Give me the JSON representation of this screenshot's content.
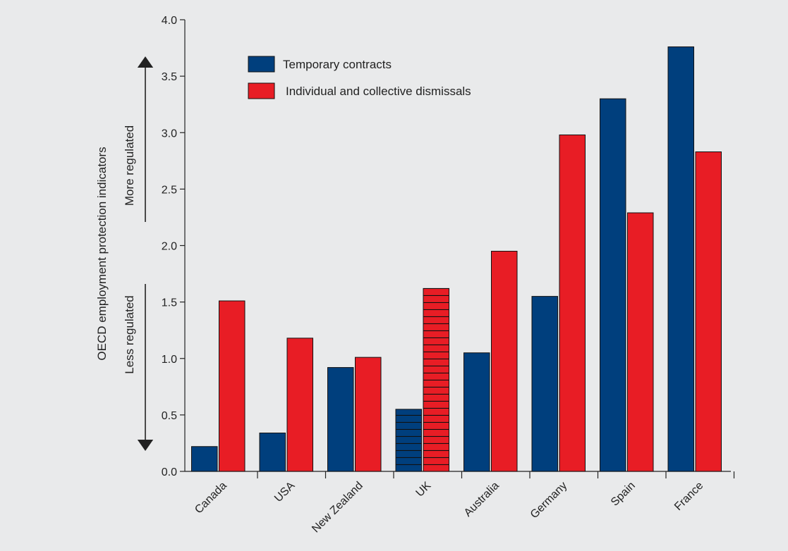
{
  "chart_data": {
    "type": "bar",
    "categories": [
      "Canada",
      "USA",
      "New Zealand",
      "UK",
      "Australia",
      "Germany",
      "Spain",
      "France"
    ],
    "series": [
      {
        "name": "Temporary contracts",
        "color": "#003f7d",
        "values": [
          0.22,
          0.34,
          0.92,
          0.55,
          1.05,
          1.55,
          3.3,
          3.76
        ]
      },
      {
        "name": "Individual and collective dismissals",
        "color": "#e81d25",
        "values": [
          1.51,
          1.18,
          1.01,
          1.62,
          1.95,
          2.98,
          2.29,
          2.83
        ]
      }
    ],
    "ylabel": "OECD employment protection indicators",
    "ylim": [
      0,
      4
    ],
    "yticks": [
      "0.0",
      "0.5",
      "1.0",
      "1.5",
      "2.0",
      "2.5",
      "3.0",
      "3.5",
      "4.0"
    ],
    "highlighted_category": "UK",
    "highlight_pattern": "horizontal-stripes",
    "annotations": {
      "up": "More regulated",
      "down": "Less regulated"
    },
    "legend_position": "top-left",
    "grid": false
  }
}
